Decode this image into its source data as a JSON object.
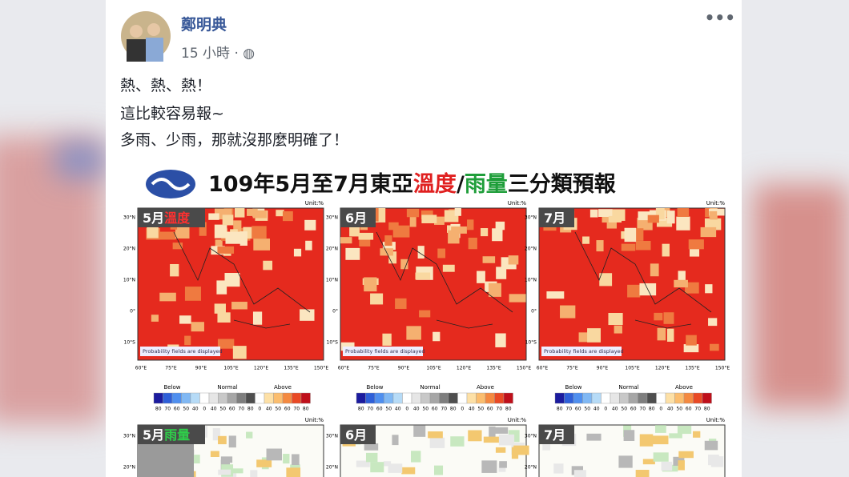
{
  "post": {
    "author": "鄭明典",
    "time": "15 小時",
    "separator": "·",
    "text": [
      "熱、熱、熱！",
      "這比較容易報~",
      "多雨、少雨，那就沒那麼明確了！"
    ]
  },
  "image": {
    "title_start": "109年5月至7月東亞",
    "title_temp": "溫度",
    "title_slash": "/",
    "title_rain": "雨量",
    "title_end": "三分類預報",
    "temp_panels": [
      {
        "month": "5月",
        "variable": "溫度"
      },
      {
        "month": "6月"
      },
      {
        "month": "7月"
      }
    ],
    "rain_panels": [
      {
        "month": "5月",
        "variable": "雨量"
      },
      {
        "month": "6月"
      },
      {
        "month": "7月"
      }
    ],
    "unit": "Unit:%",
    "note": "Probability fields are displayed",
    "lat_ticks": [
      "30°N",
      "20°N",
      "10°N",
      "0°",
      "10°S"
    ],
    "lon_ticks": [
      "60°E",
      "75°E",
      "90°E",
      "105°E",
      "120°E",
      "135°E",
      "150°E"
    ],
    "legend_groups": [
      "Below",
      "Normal",
      "Above"
    ],
    "legend_numbers": [
      "80",
      "70",
      "60",
      "50",
      "40",
      "0",
      "40",
      "50",
      "60",
      "70",
      "80",
      "0",
      "40",
      "50",
      "60",
      "70",
      "80"
    ]
  }
}
